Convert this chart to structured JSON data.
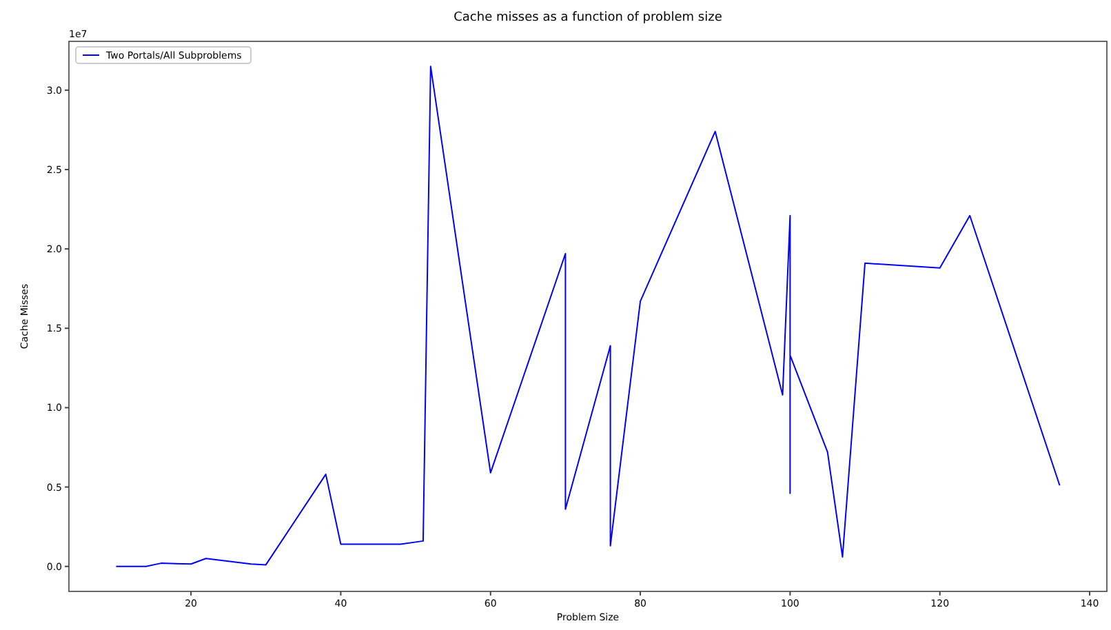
{
  "chart_data": {
    "type": "line",
    "title": "Cache misses as a function of problem size",
    "xlabel": "Problem Size",
    "ylabel": "Cache Misses",
    "annotations": [
      "1e7"
    ],
    "x": [
      10,
      14,
      16,
      20,
      22,
      28,
      30,
      38,
      40,
      48,
      51,
      52,
      60,
      70,
      70,
      76,
      76,
      80,
      90,
      99,
      100,
      100,
      100,
      105,
      107,
      110,
      120,
      124,
      136
    ],
    "series": [
      {
        "name": "Two Portals/All Subproblems",
        "color": "#0000ff",
        "values": [
          0.0,
          0.0,
          0.02,
          0.015,
          0.05,
          0.015,
          0.01,
          0.58,
          0.14,
          0.14,
          0.16,
          3.15,
          0.59,
          1.97,
          0.36,
          1.39,
          0.13,
          1.67,
          2.74,
          1.08,
          2.21,
          0.46,
          1.33,
          0.72,
          0.06,
          1.91,
          1.88,
          2.21,
          0.51
        ]
      }
    ],
    "xlim": [
      3.7,
      142.3
    ],
    "xticks": [
      20,
      40,
      60,
      80,
      100,
      120,
      140
    ],
    "ylim": [
      -0.1575,
      3.3075
    ],
    "yticks": [
      {
        "value": 0,
        "label": "0.0"
      },
      {
        "value": 0.5,
        "label": "0.5"
      },
      {
        "value": 1,
        "label": "1.0"
      },
      {
        "value": 1.5,
        "label": "1.5"
      },
      {
        "value": 2,
        "label": "2.0"
      },
      {
        "value": 2.5,
        "label": "2.5"
      },
      {
        "value": 3,
        "label": "3.0"
      }
    ],
    "legend": "top left",
    "grid": false,
    "line_style": "solid",
    "marker": "none"
  }
}
